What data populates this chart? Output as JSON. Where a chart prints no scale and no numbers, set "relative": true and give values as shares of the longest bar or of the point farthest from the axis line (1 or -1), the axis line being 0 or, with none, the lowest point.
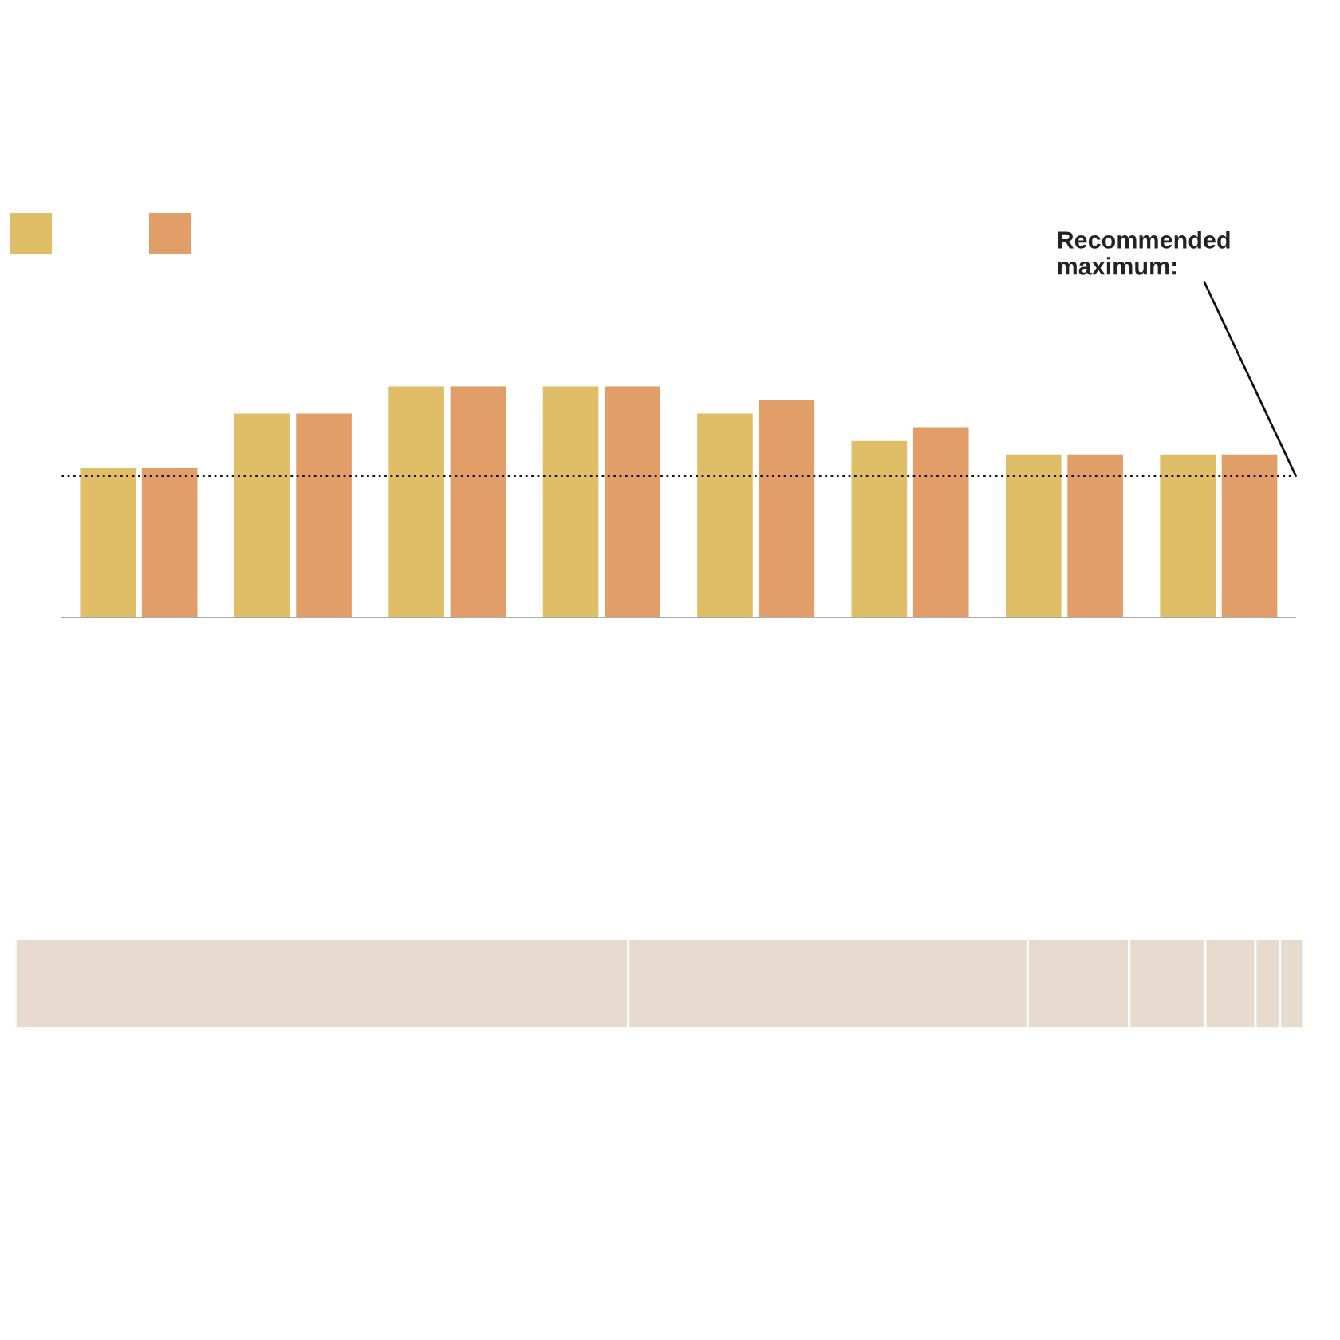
{
  "chart_data": [
    {
      "type": "bar",
      "relative": true,
      "categories": [
        null,
        null,
        null,
        null,
        null,
        null,
        null,
        null
      ],
      "series": [
        {
          "color": "#e0be68",
          "values": [
            0.646,
            0.882,
            1,
            1,
            0.882,
            0.764,
            0.705,
            0.705
          ]
        },
        {
          "color": "#e19e68",
          "values": [
            0.646,
            0.882,
            1,
            1,
            0.941,
            0.823,
            0.705,
            0.705
          ]
        }
      ],
      "ref_lines": [
        {
          "axis": "y",
          "value": 0.613,
          "label": "Recommended\nmaximum:",
          "color": "#111111",
          "line_style": "dotted"
        }
      ]
    },
    {
      "type": "bar",
      "relative": true,
      "orientation": "horizontal",
      "stacked": true,
      "categories": [
        null
      ],
      "series": [
        {
          "color": "#e7dbd0",
          "values": [
            0.476
          ]
        },
        {
          "color": "#e7dbd0",
          "values": [
            0.31
          ]
        },
        {
          "color": "#e7dbd0",
          "values": [
            0.079
          ]
        },
        {
          "color": "#e7dbd0",
          "values": [
            0.059
          ]
        },
        {
          "color": "#e7dbd0",
          "values": [
            0.039
          ]
        },
        {
          "color": "#e7dbd0",
          "values": [
            0.019
          ]
        },
        {
          "color": "#e7dbd0",
          "values": [
            0.018
          ]
        }
      ]
    }
  ]
}
